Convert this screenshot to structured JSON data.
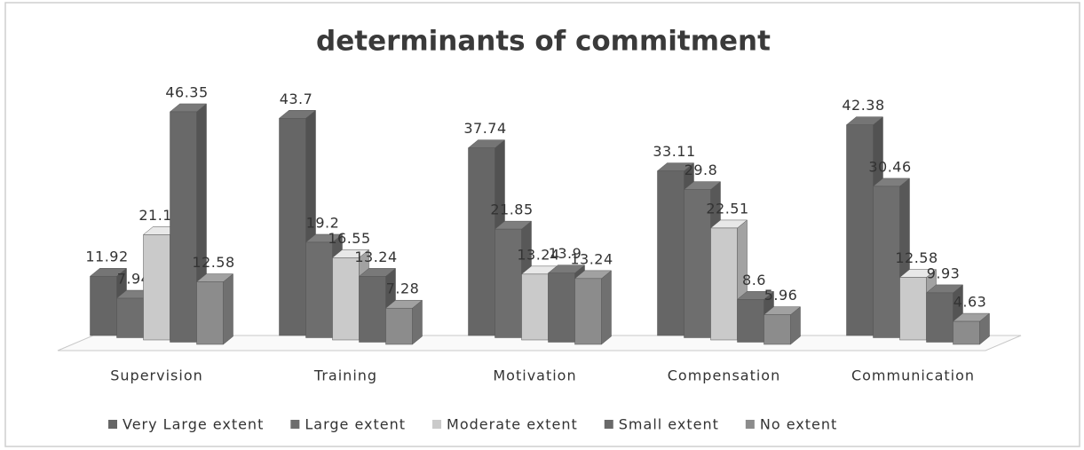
{
  "chart_data": {
    "type": "bar3d",
    "title": "determinants of commitment",
    "categories": [
      "Supervision",
      "Training",
      "Motivation",
      "Compensation",
      "Communication"
    ],
    "series": [
      {
        "name": "Very Large extent",
        "color": "#666666",
        "values": [
          11.92,
          43.7,
          37.74,
          33.11,
          42.38
        ]
      },
      {
        "name": "Large extent",
        "color": "#6e6e6e",
        "values": [
          7.94,
          19.2,
          21.85,
          29.8,
          30.46
        ]
      },
      {
        "name": "Moderate extent",
        "color": "#cacaca",
        "values": [
          21.19,
          16.55,
          13.24,
          22.51,
          12.58
        ]
      },
      {
        "name": "Small extent",
        "color": "#696969",
        "values": [
          46.35,
          13.24,
          13.9,
          8.6,
          9.93
        ]
      },
      {
        "name": "No extent",
        "color": "#8c8c8c",
        "values": [
          12.58,
          7.28,
          13.24,
          5.96,
          4.63
        ]
      }
    ],
    "legend": "bottom"
  }
}
